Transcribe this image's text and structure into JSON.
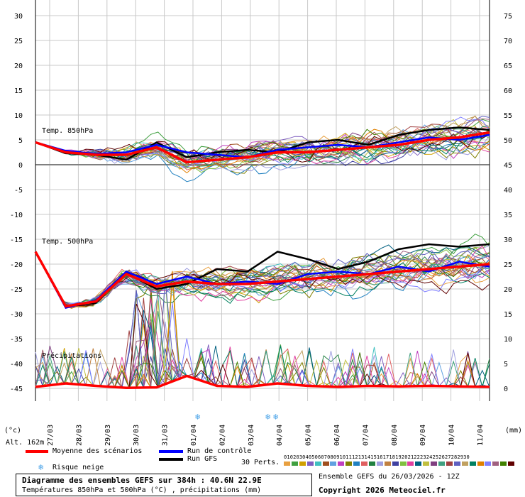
{
  "left_axis": {
    "ticks": [
      "30",
      "25",
      "20",
      "15",
      "10",
      "5",
      "0",
      "-5",
      "-10",
      "-15",
      "-20",
      "-25",
      "-30",
      "-35",
      "-40",
      "-45"
    ],
    "unit": "(°c)"
  },
  "right_axis": {
    "ticks": [
      "75",
      "70",
      "65",
      "60",
      "55",
      "50",
      "45",
      "40",
      "35",
      "30",
      "25",
      "20",
      "15",
      "10",
      "5",
      "0"
    ],
    "unit": "(mm)"
  },
  "x_axis": {
    "dates": [
      "27/03",
      "28/03",
      "29/03",
      "30/03",
      "31/03",
      "01/04",
      "02/04",
      "03/04",
      "04/04",
      "05/04",
      "06/04",
      "07/04",
      "08/04",
      "09/04",
      "10/04",
      "11/04"
    ]
  },
  "panel_labels": {
    "t850": "Temp. 850hPa",
    "t500": "Temp. 500hPa",
    "precip": "Précipitations"
  },
  "altitude": "Alt. 162m",
  "legend": {
    "mean": "Moyenne des scénarios",
    "control": "Run de contrôle",
    "gfs": "Run GFS",
    "snow": "Risque neige",
    "perts_label": "30 Perts.",
    "perts_numbers": "010203040506070809101112131415161718192021222324252627282930"
  },
  "title": {
    "line1": "Diagramme des ensembles GEFS sur 384h : 40.6N 22.9E",
    "line2": "Températures 850hPa et 500hPa (°C) , précipitations (mm)"
  },
  "run_info": "Ensemble GEFS du 26/03/2026 - 12Z",
  "copyright": "Copyright 2026 Meteociel.fr",
  "colors": {
    "mean": "#ff0000",
    "control": "#0000ff",
    "gfs": "#000000",
    "snow": "#4aa3e8",
    "members": [
      "#e8a040",
      "#40a040",
      "#d0a000",
      "#8060c0",
      "#40c0c0",
      "#a05020",
      "#60a0e0",
      "#c040c0",
      "#808000",
      "#2080c0",
      "#e06060",
      "#208040",
      "#a0a0e0",
      "#c08040",
      "#4040a0",
      "#80c040",
      "#e040a0",
      "#006080",
      "#c0c040",
      "#804080",
      "#40a080",
      "#a04040",
      "#6060c0",
      "#c0a060",
      "#008060",
      "#e08000",
      "#8080ff",
      "#a06080",
      "#408000",
      "#600000"
    ]
  },
  "chart_data": {
    "type": "line",
    "title": "Diagramme des ensembles GEFS sur 384h : 40.6N 22.9E",
    "x": [
      "27/03",
      "28/03",
      "29/03",
      "30/03",
      "31/03",
      "01/04",
      "02/04",
      "03/04",
      "04/04",
      "05/04",
      "06/04",
      "07/04",
      "08/04",
      "09/04",
      "10/04",
      "11/04"
    ],
    "ylim": [
      -45,
      30
    ],
    "y2lim": [
      0,
      75
    ],
    "grid": true,
    "series": [
      {
        "name": "Temp. 850hPa moyenne",
        "values": [
          4.5,
          2.5,
          2.0,
          2.0,
          3.5,
          0.5,
          1.0,
          1.5,
          2.5,
          2.5,
          3.0,
          3.5,
          4.0,
          5.0,
          5.5,
          6.5
        ]
      },
      {
        "name": "Temp. 850hPa contrôle",
        "values": [
          4.5,
          2.8,
          2.2,
          2.5,
          4.0,
          2.5,
          2.0,
          1.5,
          3.0,
          3.5,
          4.0,
          3.5,
          4.5,
          5.5,
          5.0,
          6.0
        ]
      },
      {
        "name": "Temp. 850hPa GFS",
        "values": [
          4.5,
          2.3,
          2.0,
          1.0,
          4.5,
          1.5,
          2.5,
          3.0,
          2.5,
          4.5,
          5.0,
          4.0,
          6.0,
          7.0,
          7.5,
          7.0
        ]
      },
      {
        "name": "Temp. 500hPa moyenne",
        "values": [
          -17.5,
          -28.5,
          -27.5,
          -22.0,
          -24.5,
          -23.5,
          -24.0,
          -24.0,
          -23.5,
          -23.0,
          -22.5,
          -22.0,
          -21.5,
          -21.0,
          -20.5,
          -20.0
        ]
      },
      {
        "name": "Temp. 500hPa contrôle",
        "values": [
          -17.5,
          -28.8,
          -27.3,
          -21.5,
          -24.0,
          -22.5,
          -24.0,
          -23.5,
          -24.0,
          -22.0,
          -21.5,
          -22.0,
          -20.5,
          -21.5,
          -19.5,
          -20.5
        ]
      },
      {
        "name": "Temp. 500hPa GFS",
        "values": [
          -17.5,
          -28.5,
          -27.8,
          -21.8,
          -25.0,
          -24.0,
          -21.0,
          -21.5,
          -17.5,
          -19.0,
          -21.0,
          -19.5,
          -17.0,
          -16.0,
          -16.5,
          -16.0
        ]
      },
      {
        "name": "Précipitations moyenne",
        "values": [
          0.3,
          1.0,
          0.5,
          0.1,
          0.2,
          2.5,
          0.5,
          0.3,
          1.0,
          0.5,
          0.3,
          0.5,
          0.4,
          0.5,
          0.4,
          0.3
        ]
      }
    ]
  }
}
